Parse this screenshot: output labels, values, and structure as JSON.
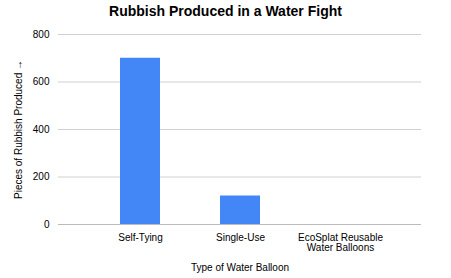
{
  "chart_data": {
    "type": "bar",
    "title": "Rubbish Produced in a Water Fight",
    "categories": [
      "Self-Tying",
      "Single-Use",
      "EcoSplat Reusable Water Balloons"
    ],
    "values": [
      700,
      120,
      0
    ],
    "color": "#4287f5",
    "xlabel": "Type of Water Balloon",
    "ylabel": "Pieces of Rubbish Produced",
    "ylim": [
      0,
      800
    ],
    "yticks": [
      0,
      200,
      400,
      600,
      800
    ],
    "grid": true
  }
}
